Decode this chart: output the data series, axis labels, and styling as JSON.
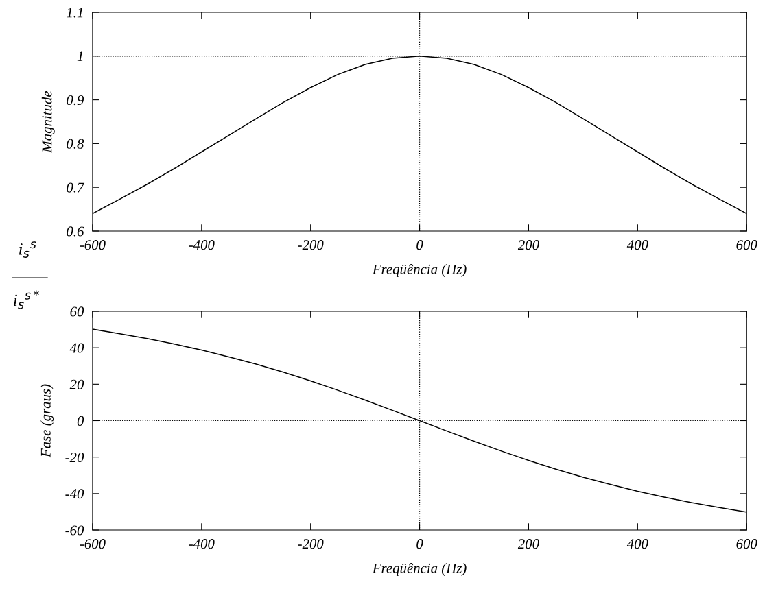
{
  "chart_data": [
    {
      "type": "line",
      "ylabel": "Magnitude",
      "xlabel": "Freqüência (Hz)",
      "annotations": [
        "i$_{s}$$^{s}$",
        "i$_{s}$$^{s*}$"
      ],
      "x": [
        -600,
        -550,
        -500,
        -450,
        -400,
        -350,
        -300,
        -250,
        -200,
        -150,
        -100,
        -50,
        0,
        50,
        100,
        150,
        200,
        250,
        300,
        350,
        400,
        450,
        500,
        550,
        600
      ],
      "series": [
        {
          "color": "#000000",
          "values": [
            0.64,
            0.673,
            0.707,
            0.743,
            0.781,
            0.819,
            0.857,
            0.894,
            0.928,
            0.958,
            0.981,
            0.995,
            1.0,
            0.995,
            0.981,
            0.958,
            0.928,
            0.894,
            0.857,
            0.819,
            0.781,
            0.743,
            0.707,
            0.673,
            0.64
          ]
        }
      ],
      "xlim": [
        -600,
        600
      ],
      "xticks": [
        -600,
        -400,
        -200,
        0,
        200,
        400,
        600
      ],
      "ylim": [
        0.6,
        1.1
      ],
      "yticks": [
        0.6,
        0.7,
        0.8,
        0.9,
        1,
        1.1
      ],
      "ref_lines": [
        {
          "axis": "y",
          "value": 1,
          "line_style": "dotted",
          "color": "#000000"
        },
        {
          "axis": "x",
          "value": 0,
          "line_style": "dotted",
          "color": "#000000"
        }
      ],
      "grid": false,
      "legend": false,
      "marker": "none",
      "line_style": "solid"
    },
    {
      "type": "line",
      "ylabel": "Fase (graus)",
      "xlabel": "Freqüência (Hz)",
      "x": [
        -600,
        -550,
        -500,
        -450,
        -400,
        -350,
        -300,
        -250,
        -200,
        -150,
        -100,
        -50,
        0,
        50,
        100,
        150,
        200,
        250,
        300,
        350,
        400,
        450,
        500,
        550,
        600
      ],
      "series": [
        {
          "color": "#000000",
          "values": [
            50.2,
            47.7,
            45.0,
            42.0,
            38.7,
            35.0,
            31.0,
            26.6,
            21.8,
            16.7,
            11.3,
            5.7,
            0,
            -5.7,
            -11.3,
            -16.7,
            -21.8,
            -26.6,
            -31.0,
            -35.0,
            -38.7,
            -42.0,
            -45.0,
            -47.7,
            -50.2
          ]
        }
      ],
      "xlim": [
        -600,
        600
      ],
      "xticks": [
        -600,
        -400,
        -200,
        0,
        200,
        400,
        600
      ],
      "ylim": [
        -60,
        60
      ],
      "yticks": [
        -60,
        -40,
        -20,
        0,
        20,
        40,
        60
      ],
      "ref_lines": [
        {
          "axis": "y",
          "value": 0,
          "line_style": "dotted",
          "color": "#000000"
        },
        {
          "axis": "x",
          "value": 0,
          "line_style": "dotted",
          "color": "#000000"
        }
      ],
      "grid": false,
      "legend": false,
      "marker": "none",
      "line_style": "solid"
    }
  ]
}
